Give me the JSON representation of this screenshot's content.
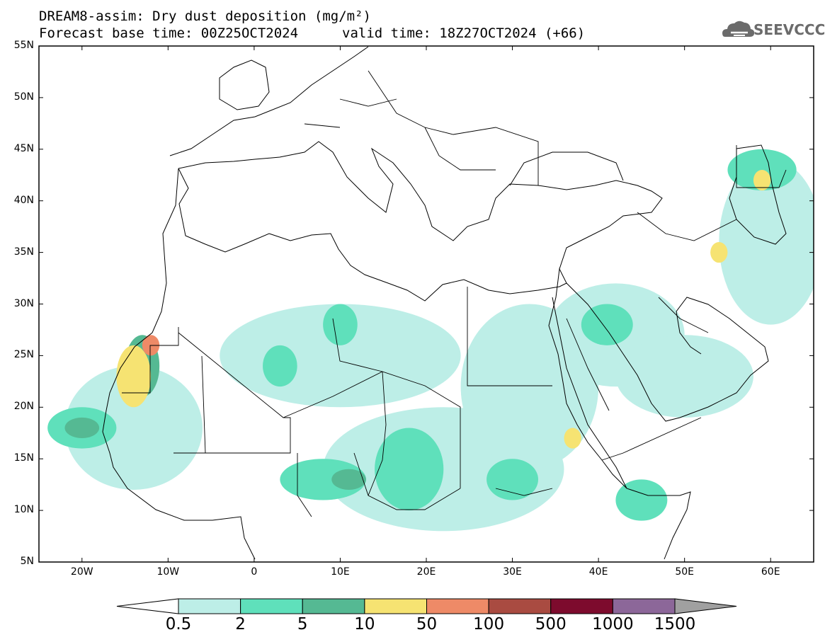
{
  "header": {
    "title_line1": "DREAM8-assim: Dry dust deposition (mg/m²)",
    "base_time": "Forecast base time: 00Z25OCT2024",
    "valid_time": "valid time: 18Z27OCT2024 (+66)"
  },
  "logo": {
    "text": "SEEVCCC",
    "icon": "cloud-icon"
  },
  "map": {
    "lon_range": [
      -25,
      65
    ],
    "lat_range": [
      5,
      55
    ],
    "lat_labels": [
      "55N",
      "50N",
      "45N",
      "40N",
      "35N",
      "30N",
      "25N",
      "20N",
      "15N",
      "10N",
      "5N"
    ],
    "lat_values": [
      55,
      50,
      45,
      40,
      35,
      30,
      25,
      20,
      15,
      10,
      5
    ],
    "lon_labels": [
      "20W",
      "10W",
      "0",
      "10E",
      "20E",
      "30E",
      "40E",
      "50E",
      "60E"
    ],
    "lon_values": [
      -20,
      -10,
      0,
      10,
      20,
      30,
      40,
      50,
      60
    ],
    "blobs": [
      {
        "level": 0,
        "lon": 10,
        "lat": 25,
        "rlon": 14,
        "rlat": 5
      },
      {
        "level": 0,
        "lon": 22,
        "lat": 14,
        "rlon": 14,
        "rlat": 6
      },
      {
        "level": 0,
        "lon": -14,
        "lat": 18,
        "rlon": 8,
        "rlat": 6
      },
      {
        "level": 0,
        "lon": 32,
        "lat": 22,
        "rlon": 8,
        "rlat": 8
      },
      {
        "level": 0,
        "lon": 42,
        "lat": 27,
        "rlon": 8,
        "rlat": 5
      },
      {
        "level": 0,
        "lon": 60,
        "lat": 36,
        "rlon": 6,
        "rlat": 8
      },
      {
        "level": 0,
        "lon": 50,
        "lat": 23,
        "rlon": 8,
        "rlat": 4
      },
      {
        "level": 1,
        "lon": 18,
        "lat": 14,
        "rlon": 4,
        "rlat": 4
      },
      {
        "level": 1,
        "lon": 8,
        "lat": 13,
        "rlon": 5,
        "rlat": 2
      },
      {
        "level": 1,
        "lon": -20,
        "lat": 18,
        "rlon": 4,
        "rlat": 2
      },
      {
        "level": 1,
        "lon": 30,
        "lat": 13,
        "rlon": 3,
        "rlat": 2
      },
      {
        "level": 1,
        "lon": 41,
        "lat": 28,
        "rlon": 3,
        "rlat": 2
      },
      {
        "level": 1,
        "lon": 59,
        "lat": 43,
        "rlon": 4,
        "rlat": 2
      },
      {
        "level": 1,
        "lon": 45,
        "lat": 11,
        "rlon": 3,
        "rlat": 2
      },
      {
        "level": 1,
        "lon": 3,
        "lat": 24,
        "rlon": 2,
        "rlat": 2
      },
      {
        "level": 1,
        "lon": 10,
        "lat": 28,
        "rlon": 2,
        "rlat": 2
      },
      {
        "level": 2,
        "lon": -20,
        "lat": 18,
        "rlon": 2,
        "rlat": 1
      },
      {
        "level": 2,
        "lon": 11,
        "lat": 13,
        "rlon": 2,
        "rlat": 1
      },
      {
        "level": 2,
        "lon": -13,
        "lat": 24,
        "rlon": 2,
        "rlat": 3
      },
      {
        "level": 3,
        "lon": -14,
        "lat": 23,
        "rlon": 2,
        "rlat": 3
      },
      {
        "level": 3,
        "lon": 37,
        "lat": 17,
        "rlon": 1,
        "rlat": 1
      },
      {
        "level": 3,
        "lon": 59,
        "lat": 42,
        "rlon": 1,
        "rlat": 1
      },
      {
        "level": 3,
        "lon": 54,
        "lat": 35,
        "rlon": 1,
        "rlat": 1
      },
      {
        "level": 4,
        "lon": -12,
        "lat": 26,
        "rlon": 1,
        "rlat": 1
      }
    ]
  },
  "colorbar": {
    "colors": [
      "#ffffff",
      "#bdeee7",
      "#5fe0bb",
      "#55b993",
      "#f6e372",
      "#ee8a67",
      "#a94b41",
      "#7d0b2d",
      "#8c6799",
      "#a0a0a0"
    ],
    "labels": [
      "0.5",
      "2",
      "5",
      "10",
      "50",
      "100",
      "500",
      "1000",
      "1500"
    ]
  }
}
